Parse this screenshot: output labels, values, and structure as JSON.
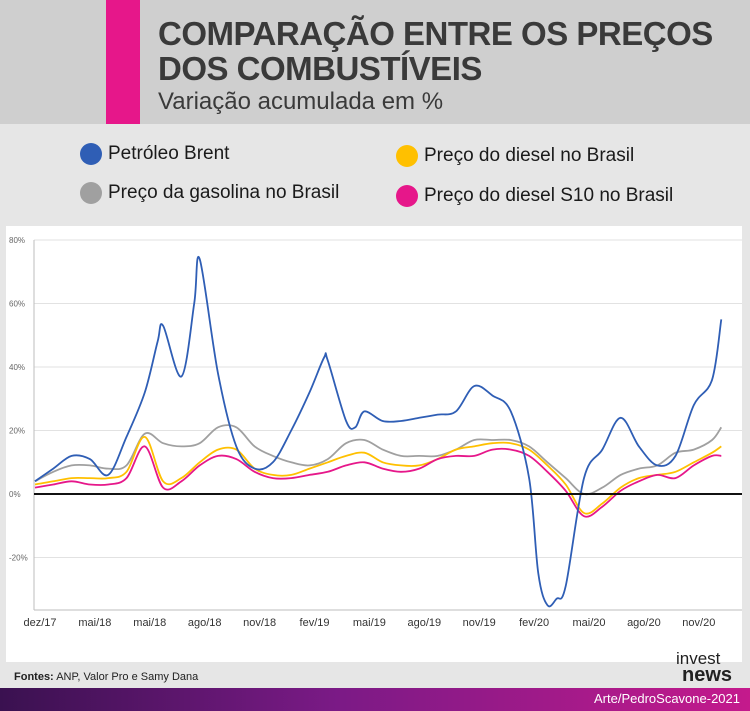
{
  "header": {
    "title": "COMPARAÇÃO ENTRE OS PREÇOS DOS COMBUSTÍVEIS",
    "subtitle": "Variação acumulada em %"
  },
  "legend": [
    {
      "label": "Petróleo Brent",
      "color": "#2f5eb5"
    },
    {
      "label": "Preço da gasolina no Brasil",
      "color": "#a0a0a0"
    },
    {
      "label": "Preço do diesel no Brasil",
      "color": "#ffc000"
    },
    {
      "label": "Preço do diesel S10 no Brasil",
      "color": "#e6178a"
    }
  ],
  "chart_data": {
    "type": "line",
    "title": "Comparação entre os preços dos combustíveis",
    "ylabel": "Variação acumulada em %",
    "ylim": [
      -36,
      80
    ],
    "yticks": [
      80,
      60,
      40,
      20,
      0,
      -20
    ],
    "ytick_labels": [
      "80%",
      "60%",
      "40%",
      "20%",
      "0%",
      "-20%"
    ],
    "xlim": [
      0,
      42
    ],
    "xticks": [
      0,
      3,
      6,
      9,
      12,
      15,
      18,
      21,
      24,
      27,
      30,
      33,
      36
    ],
    "xtick_labels": [
      "dez/17",
      "mai/18",
      "mai/18",
      "ago/18",
      "nov/18",
      "fev/19",
      "mai/19",
      "ago/19",
      "nov/19",
      "fev/20",
      "mai/20",
      "ago/20",
      "nov/20"
    ],
    "series": [
      {
        "name": "Petróleo Brent",
        "color": "#2f5eb5",
        "x": [
          0,
          1,
          2,
          3,
          4,
          5,
          6,
          6.7,
          7,
          8,
          8.7,
          9,
          10,
          11,
          12,
          13,
          14,
          15,
          15.8,
          16,
          17,
          17.5,
          18,
          19,
          20,
          21,
          22,
          23,
          24,
          25,
          26,
          27,
          27.5,
          28,
          28.5,
          29,
          30,
          31,
          32,
          33,
          34,
          35,
          36,
          37,
          37.5
        ],
        "values": [
          4,
          8,
          12,
          11,
          6,
          18,
          32,
          48,
          53,
          37,
          60,
          74,
          38,
          15,
          8,
          10,
          20,
          32,
          43,
          42,
          23,
          21,
          26,
          23,
          23,
          24,
          25,
          26,
          34,
          31,
          26,
          5,
          -25,
          -35,
          -33,
          -29,
          5,
          14,
          24,
          15,
          9,
          12,
          28,
          36,
          55
        ]
      },
      {
        "name": "Preço da gasolina no Brasil",
        "color": "#a0a0a0",
        "x": [
          0,
          1,
          2,
          3,
          4,
          5,
          6,
          7,
          8,
          9,
          10,
          11,
          12,
          13,
          14,
          15,
          16,
          17,
          18,
          19,
          20,
          21,
          22,
          23,
          24,
          25,
          26,
          27,
          28,
          29,
          30,
          31,
          32,
          33,
          34,
          35,
          36,
          37,
          37.5
        ],
        "values": [
          4,
          7,
          9,
          9,
          8,
          9,
          19,
          16,
          15,
          16,
          21,
          21,
          15,
          12,
          10,
          9,
          11,
          16,
          17,
          14,
          12,
          12,
          12,
          14,
          17,
          17,
          17,
          15,
          10,
          5,
          0,
          2,
          6,
          8,
          9,
          13,
          14,
          17,
          21
        ]
      },
      {
        "name": "Preço do diesel no Brasil",
        "color": "#ffc000",
        "x": [
          0,
          1,
          2,
          3,
          4,
          5,
          6,
          7,
          8,
          9,
          10,
          11,
          12,
          13,
          14,
          15,
          16,
          17,
          18,
          19,
          20,
          21,
          22,
          23,
          24,
          25,
          26,
          27,
          28,
          29,
          30,
          31,
          32,
          33,
          34,
          35,
          36,
          37,
          37.5
        ],
        "values": [
          3,
          4,
          5,
          5,
          5,
          7,
          18,
          4,
          5,
          10,
          14,
          14,
          8,
          6,
          6,
          8,
          10,
          12,
          13,
          10,
          9,
          9,
          11,
          14,
          15,
          16,
          16,
          14,
          9,
          3,
          -6,
          -3,
          2,
          5,
          6,
          7,
          10,
          13,
          15
        ]
      },
      {
        "name": "Preço do diesel S10 no Brasil",
        "color": "#e6178a",
        "x": [
          0,
          1,
          2,
          3,
          4,
          5,
          6,
          7,
          8,
          9,
          10,
          11,
          12,
          13,
          14,
          15,
          16,
          17,
          18,
          19,
          20,
          21,
          22,
          23,
          24,
          25,
          26,
          27,
          28,
          29,
          30,
          31,
          32,
          33,
          34,
          35,
          36,
          37,
          37.5
        ],
        "values": [
          2,
          3,
          4,
          3,
          3,
          5,
          15,
          2,
          4,
          9,
          12,
          11,
          7,
          5,
          5,
          6,
          7,
          9,
          10,
          8,
          7,
          8,
          11,
          12,
          12,
          14,
          14,
          12,
          7,
          1,
          -7,
          -4,
          1,
          4,
          6,
          5,
          9,
          12,
          12
        ]
      }
    ]
  },
  "footer": {
    "sources_label": "Fontes:",
    "sources_text": "ANP, Valor Pro e Samy Dana",
    "credit": "Arte/PedroScavone-2021",
    "logo_top": "invest",
    "logo_bottom": "news"
  }
}
